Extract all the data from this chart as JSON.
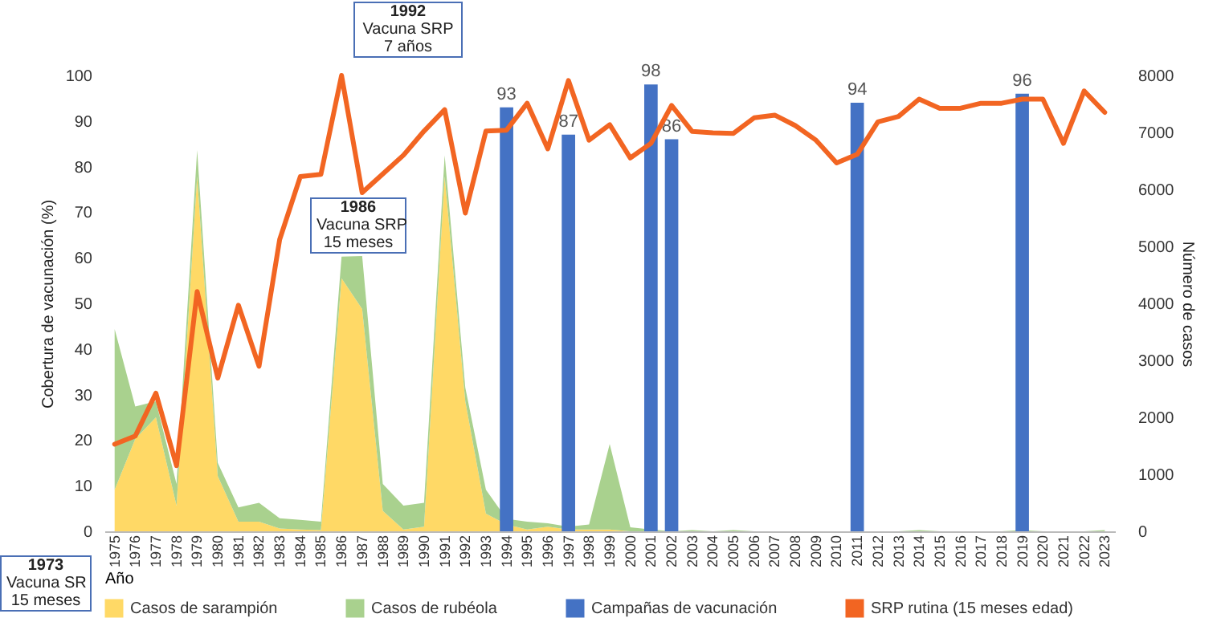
{
  "chart_data": {
    "type": "line",
    "xlabel": "Año",
    "ylabel": "Cobertura de vacunación (%)",
    "y2label": "Número de casos",
    "categories": [
      "1975",
      "1976",
      "1977",
      "1978",
      "1979",
      "1980",
      "1981",
      "1982",
      "1983",
      "1984",
      "1985",
      "1986",
      "1987",
      "1988",
      "1989",
      "1990",
      "1991",
      "1992",
      "1993",
      "1994",
      "1995",
      "1996",
      "1997",
      "1998",
      "1999",
      "2000",
      "2001",
      "2002",
      "2003",
      "2004",
      "2005",
      "2006",
      "2007",
      "2008",
      "2009",
      "2010",
      "2011",
      "2012",
      "2013",
      "2014",
      "2015",
      "2016",
      "2017",
      "2018",
      "2019",
      "2020",
      "2021",
      "2022",
      "2023"
    ],
    "stacked": true,
    "series": [
      {
        "name": "Casos de sarampión",
        "type": "area",
        "axis": "y2",
        "color": "#ffd966",
        "values": [
          730,
          1620,
          2000,
          450,
          6230,
          970,
          170,
          170,
          50,
          30,
          20,
          4440,
          3900,
          360,
          30,
          80,
          6230,
          2280,
          310,
          120,
          30,
          80,
          30,
          30,
          30,
          0,
          0,
          0,
          0,
          0,
          0,
          0,
          0,
          0,
          0,
          0,
          0,
          0,
          0,
          0,
          0,
          0,
          0,
          0,
          0,
          0,
          0,
          0,
          0
        ]
      },
      {
        "name": "Casos de rubéola",
        "type": "area",
        "axis": "y2",
        "color": "#a9d18e",
        "values": [
          2820,
          570,
          280,
          380,
          460,
          230,
          250,
          330,
          180,
          170,
          150,
          380,
          930,
          470,
          420,
          420,
          370,
          240,
          420,
          100,
          140,
          60,
          50,
          90,
          1500,
          70,
          30,
          0,
          20,
          0,
          20,
          0,
          0,
          0,
          0,
          0,
          0,
          0,
          0,
          20,
          0,
          0,
          0,
          0,
          20,
          0,
          0,
          0,
          20
        ]
      },
      {
        "name": "Campañas de vacunación",
        "type": "bar",
        "color": "#4472c4",
        "values": [
          null,
          null,
          null,
          null,
          null,
          null,
          null,
          null,
          null,
          null,
          null,
          null,
          null,
          null,
          null,
          null,
          null,
          null,
          null,
          93,
          null,
          null,
          87,
          null,
          null,
          null,
          98,
          86,
          null,
          null,
          null,
          null,
          null,
          null,
          null,
          null,
          94,
          null,
          null,
          null,
          null,
          null,
          null,
          null,
          96,
          null,
          null,
          null,
          null
        ],
        "value_labels": [
          null,
          null,
          null,
          null,
          null,
          null,
          null,
          null,
          null,
          null,
          null,
          null,
          null,
          null,
          null,
          null,
          null,
          null,
          null,
          "93",
          null,
          null,
          "87",
          null,
          null,
          null,
          "98",
          "86",
          null,
          null,
          null,
          null,
          null,
          null,
          null,
          null,
          "94",
          null,
          null,
          null,
          null,
          null,
          null,
          null,
          "96",
          null,
          null,
          null,
          null
        ]
      },
      {
        "name": "SRP rutina (15 meses edad)",
        "color": "#f26522",
        "values": [
          19.1,
          20.9,
          30.3,
          14.4,
          52.6,
          33.6,
          49.6,
          36.2,
          64,
          77.8,
          78.3,
          100,
          74.3,
          78.4,
          82.5,
          87.8,
          92.5,
          69.8,
          87.8,
          88,
          93.9,
          83.9,
          98.9,
          85.8,
          89.2,
          81.9,
          85.1,
          93.4,
          87.7,
          87.4,
          87.3,
          90.7,
          91.3,
          89,
          85.8,
          80.8,
          82.7,
          89.8,
          91,
          94.8,
          92.8,
          92.8,
          93.9,
          93.9,
          94.8,
          94.8,
          85.1,
          96.6,
          91.9
        ]
      }
    ],
    "ylim": [
      0,
      100
    ],
    "yticks": [
      0,
      10,
      20,
      30,
      40,
      50,
      60,
      70,
      80,
      90,
      100
    ],
    "y2lim": [
      0,
      8000
    ],
    "y2ticks": [
      0,
      1000,
      2000,
      3000,
      4000,
      5000,
      6000,
      7000,
      8000
    ],
    "legend": "bottom",
    "annotations": [
      "1992\nVacuna SRP\n7 años",
      "1986\nVacuna SRP\n15 meses",
      "1973\nVacuna SR\n15 meses"
    ]
  }
}
